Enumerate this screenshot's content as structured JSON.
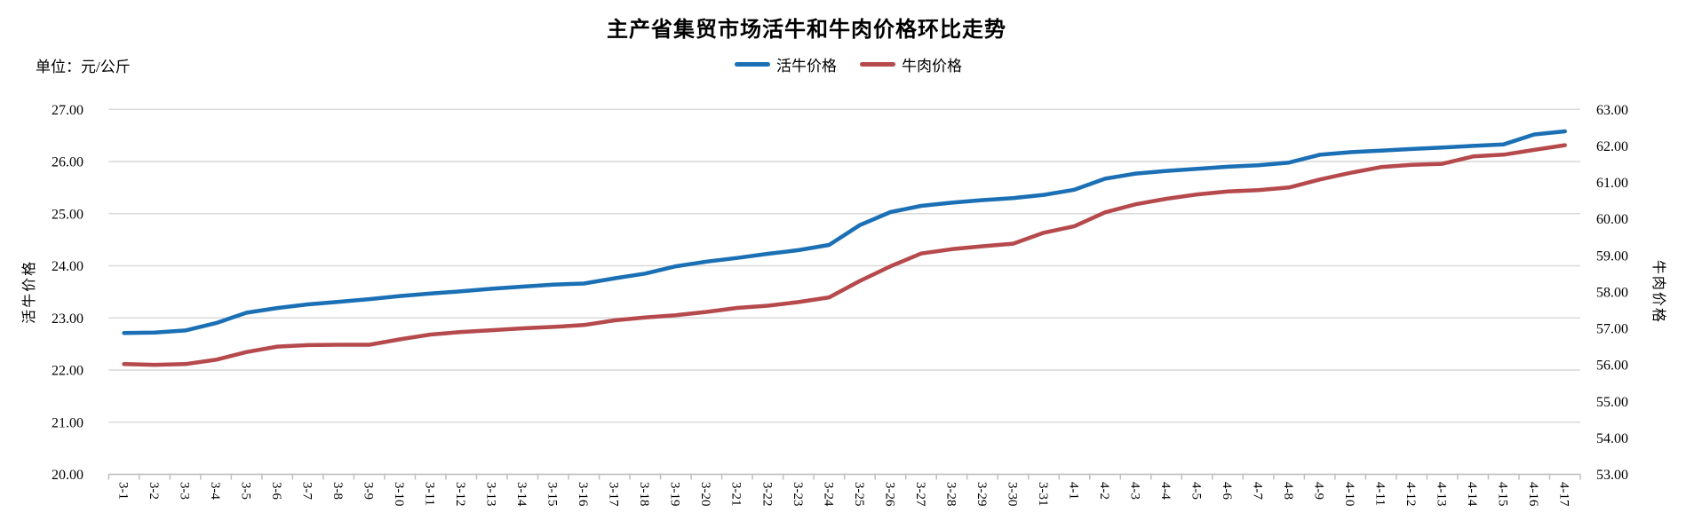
{
  "chart_data": {
    "type": "line",
    "title": "主产省集贸市场活牛和牛肉价格环比走势",
    "unit_label": "单位：元/公斤",
    "legend_position": "top",
    "grid": true,
    "gridline_color": "#d9d9d9",
    "axis_color": "#bfbfbf",
    "categories": [
      "3-1",
      "3-2",
      "3-3",
      "3-4",
      "3-5",
      "3-6",
      "3-7",
      "3-8",
      "3-9",
      "3-10",
      "3-11",
      "3-12",
      "3-13",
      "3-14",
      "3-15",
      "3-16",
      "3-17",
      "3-18",
      "3-19",
      "3-20",
      "3-21",
      "3-22",
      "3-23",
      "3-24",
      "3-25",
      "3-26",
      "3-27",
      "3-28",
      "3-29",
      "3-30",
      "3-31",
      "4-1",
      "4-2",
      "4-3",
      "4-4",
      "4-5",
      "4-6",
      "4-7",
      "4-8",
      "4-9",
      "4-10",
      "4-11",
      "4-12",
      "4-13",
      "4-14",
      "4-15",
      "4-16",
      "4-17"
    ],
    "series": [
      {
        "name": "活牛价格",
        "axis": "left",
        "color": "#1a6fb5",
        "values": [
          22.71,
          22.72,
          22.76,
          22.9,
          23.1,
          23.19,
          23.26,
          23.31,
          23.36,
          23.42,
          23.47,
          23.51,
          23.56,
          23.6,
          23.64,
          23.66,
          23.76,
          23.85,
          23.99,
          24.08,
          24.15,
          24.23,
          24.3,
          24.4,
          24.78,
          25.03,
          25.15,
          25.21,
          25.26,
          25.3,
          25.36,
          25.46,
          25.67,
          25.77,
          25.82,
          25.86,
          25.9,
          25.93,
          25.98,
          26.13,
          26.18,
          26.21,
          26.24,
          26.27,
          26.3,
          26.33,
          26.52,
          26.58
        ]
      },
      {
        "name": "牛肉价格",
        "axis": "right",
        "color": "#b5494c",
        "values": [
          56.02,
          56.0,
          56.02,
          56.14,
          56.35,
          56.5,
          56.54,
          56.55,
          56.55,
          56.7,
          56.83,
          56.9,
          56.95,
          57.0,
          57.04,
          57.09,
          57.22,
          57.3,
          57.36,
          57.45,
          57.56,
          57.62,
          57.72,
          57.85,
          58.3,
          58.7,
          59.05,
          59.17,
          59.25,
          59.32,
          59.62,
          59.8,
          60.18,
          60.4,
          60.55,
          60.67,
          60.75,
          60.79,
          60.86,
          61.08,
          61.26,
          61.42,
          61.48,
          61.51,
          61.71,
          61.76,
          61.89,
          62.02
        ]
      }
    ],
    "left_axis": {
      "title": "活牛价格",
      "min": 20,
      "max": 27,
      "ticks": [
        "20.00",
        "21.00",
        "22.00",
        "23.00",
        "24.00",
        "25.00",
        "26.00",
        "27.00"
      ]
    },
    "right_axis": {
      "title": "牛肉价格",
      "min": 53,
      "max": 63,
      "ticks": [
        "53.00",
        "54.00",
        "55.00",
        "56.00",
        "57.00",
        "58.00",
        "59.00",
        "60.00",
        "61.00",
        "62.00",
        "63.00"
      ]
    }
  }
}
